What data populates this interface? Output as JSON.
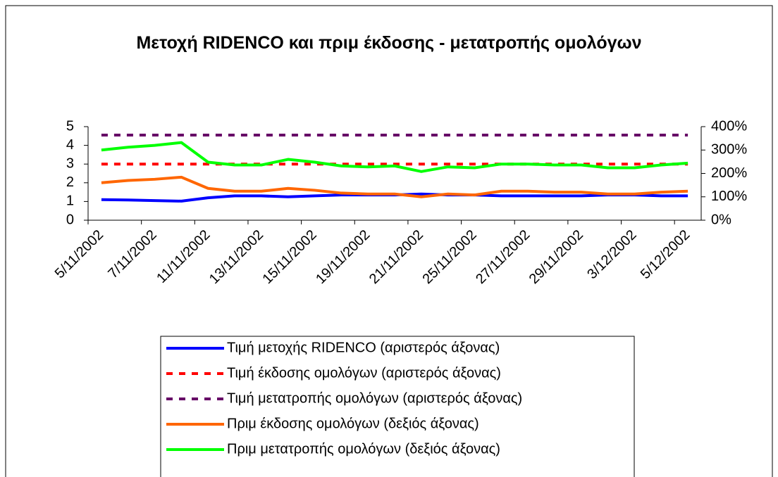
{
  "chart_data": {
    "type": "line",
    "title": "Μετοχή RIDENCO και πριμ έκδοσης - μετατροπής ομολόγων",
    "categories": [
      "5/11/2002",
      null,
      "7/11/2002",
      null,
      "11/11/2002",
      null,
      "13/11/2002",
      null,
      "15/11/2002",
      null,
      "19/11/2002",
      null,
      "21/11/2002",
      null,
      "25/11/2002",
      null,
      "27/11/2002",
      null,
      "29/11/2002",
      null,
      "3/12/2002",
      null,
      "5/12/2002"
    ],
    "series": [
      {
        "name": "Τιμή μετοχής RIDENCO (αριστερός άξονας)",
        "color": "#0000ff",
        "dash": false,
        "values": [
          1.1,
          1.08,
          1.05,
          1.02,
          1.2,
          1.3,
          1.3,
          1.25,
          1.3,
          1.35,
          1.35,
          1.35,
          1.4,
          1.35,
          1.35,
          1.3,
          1.3,
          1.3,
          1.3,
          1.35,
          1.35,
          1.3,
          1.3
        ]
      },
      {
        "name": "Τιμή έκδοσης ομολόγων (αριστερός άξονας)",
        "color": "#ff0000",
        "dash": true,
        "values": [
          3,
          3,
          3,
          3,
          3,
          3,
          3,
          3,
          3,
          3,
          3,
          3,
          3,
          3,
          3,
          3,
          3,
          3,
          3,
          3,
          3,
          3,
          3
        ]
      },
      {
        "name": "Τιμή μετατροπής ομολόγων (αριστερός άξονας)",
        "color": "#660066",
        "dash": true,
        "values": [
          4.55,
          4.55,
          4.55,
          4.55,
          4.55,
          4.55,
          4.55,
          4.55,
          4.55,
          4.55,
          4.55,
          4.55,
          4.55,
          4.55,
          4.55,
          4.55,
          4.55,
          4.55,
          4.55,
          4.55,
          4.55,
          4.55,
          4.55
        ]
      },
      {
        "name": "Πριμ έκδοσης ομολόγων (δεξιός άξονας)",
        "color": "#ff6600",
        "dash": false,
        "axis": "y2",
        "values": [
          160,
          170,
          175,
          184,
          136,
          124,
          124,
          136,
          128,
          116,
          112,
          112,
          100,
          112,
          108,
          124,
          124,
          120,
          120,
          112,
          112,
          120,
          124
        ]
      },
      {
        "name": "Πριμ μετατροπής ομολόγων (δεξιός άξονας)",
        "color": "#00ff00",
        "dash": false,
        "axis": "y2",
        "values": [
          300,
          312,
          320,
          332,
          248,
          236,
          236,
          260,
          248,
          232,
          228,
          232,
          208,
          228,
          224,
          240,
          240,
          236,
          236,
          224,
          224,
          236,
          244
        ]
      }
    ],
    "ylim": [
      0,
      5
    ],
    "yticks": [
      0,
      1,
      2,
      3,
      4,
      5
    ],
    "y2lim": [
      0,
      400
    ],
    "y2ticks": [
      {
        "value": 0,
        "label": "0%"
      },
      {
        "value": 100,
        "label": "100%"
      },
      {
        "value": 200,
        "label": "200%"
      },
      {
        "value": 300,
        "label": "300%"
      },
      {
        "value": 400,
        "label": "400%"
      }
    ],
    "legend": "bottom"
  }
}
